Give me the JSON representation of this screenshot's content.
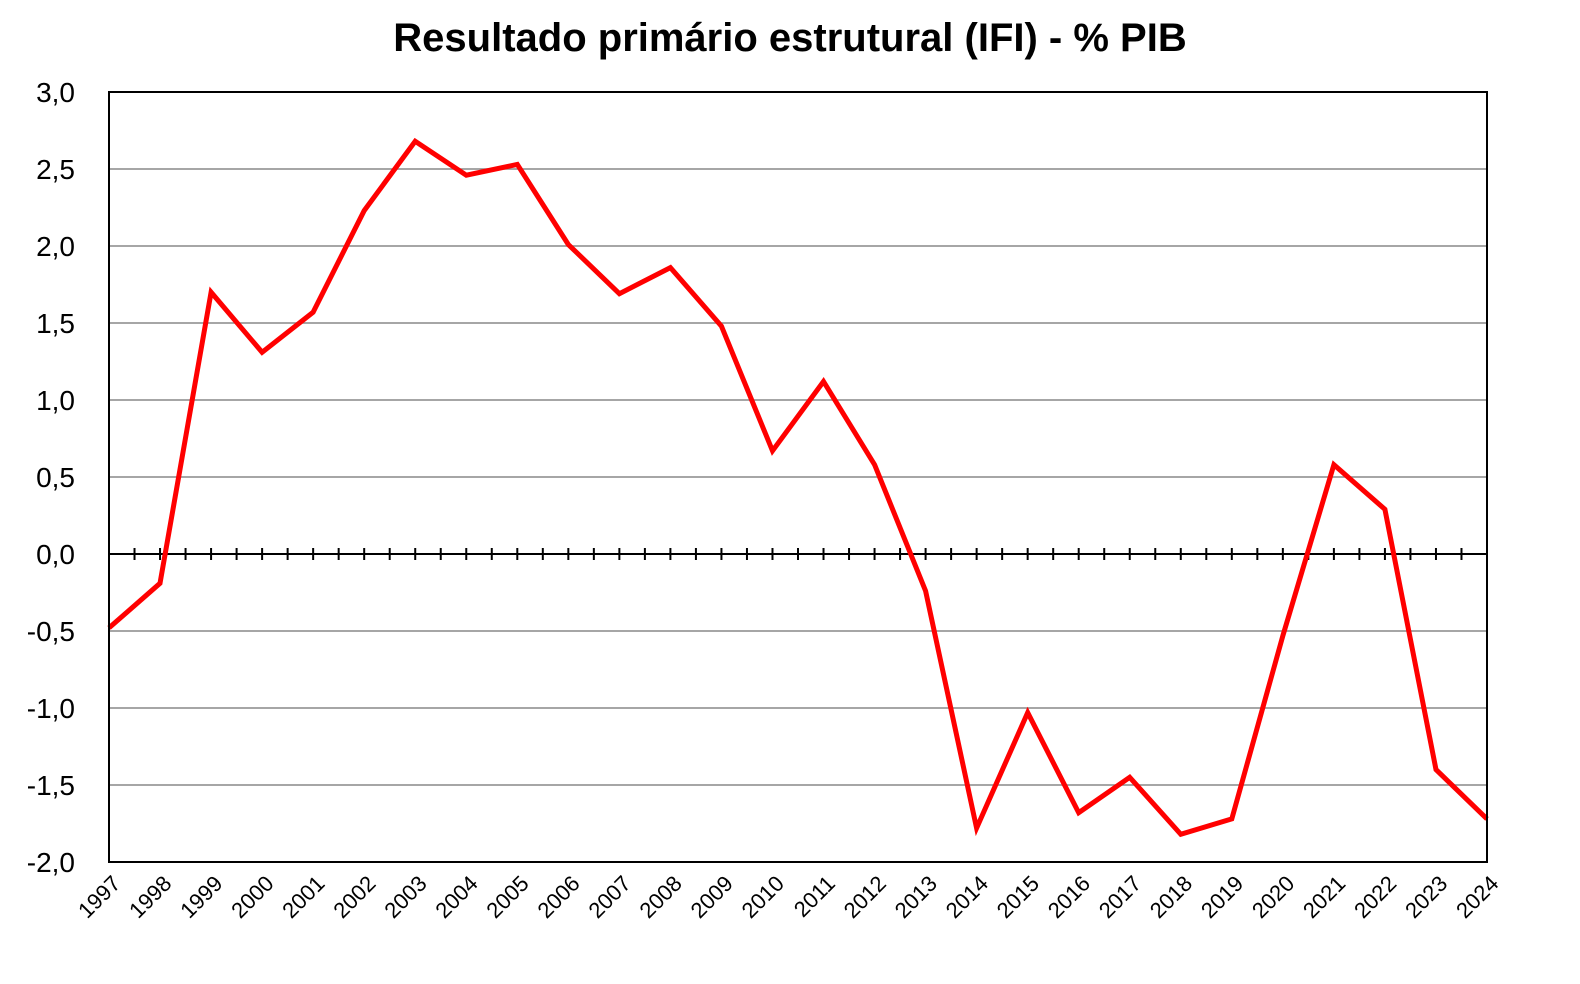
{
  "chart_data": {
    "type": "line",
    "title": "Resultado primário estrutural (IFI) - % PIB",
    "xlabel": "",
    "ylabel": "",
    "ylim": [
      -2.0,
      3.0
    ],
    "y_ticks": [
      "3,0",
      "2,5",
      "2,0",
      "1,5",
      "1,0",
      "0,5",
      "0,0",
      "-0,5",
      "-1,0",
      "-1,5",
      "-2,0"
    ],
    "y_tick_values": [
      3.0,
      2.5,
      2.0,
      1.5,
      1.0,
      0.5,
      0.0,
      -0.5,
      -1.0,
      -1.5,
      -2.0
    ],
    "categories": [
      "1997",
      "1998",
      "1999",
      "2000",
      "2001",
      "2002",
      "2003",
      "2004",
      "2005",
      "2006",
      "2007",
      "2008",
      "2009",
      "2010",
      "2011",
      "2012",
      "2013",
      "2014",
      "2015",
      "2016",
      "2017",
      "2018",
      "2019",
      "2020",
      "2021",
      "2022",
      "2023",
      "2024"
    ],
    "series": [
      {
        "color": "#ff0000",
        "values": [
          -0.48,
          -0.19,
          1.7,
          1.31,
          1.57,
          2.23,
          2.68,
          2.46,
          2.53,
          2.01,
          1.69,
          1.86,
          1.48,
          0.67,
          1.12,
          0.58,
          -0.24,
          -1.78,
          -1.03,
          -1.68,
          -1.45,
          -1.82,
          -1.72,
          -0.53,
          0.58,
          0.29,
          -1.4,
          -1.72
        ]
      }
    ],
    "grid": true,
    "legend": "none"
  }
}
